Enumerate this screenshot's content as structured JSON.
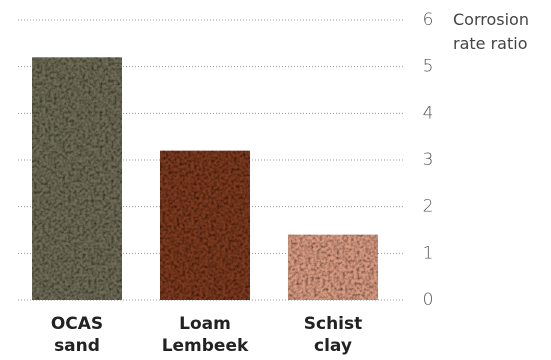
{
  "chart_data": {
    "type": "bar",
    "y_label": "Corrosion rate ratio",
    "categories": [
      "OCAS sand",
      "Loam Lembeek",
      "Schist clay"
    ],
    "values": [
      5.2,
      3.2,
      1.4
    ],
    "colors": [
      "#6e6c57",
      "#7b3a22",
      "#d99b82"
    ],
    "ylim": [
      0,
      6
    ],
    "yticks": [
      0,
      1,
      2,
      3,
      4,
      5,
      6
    ],
    "grid": true,
    "y_axis_side": "right"
  }
}
